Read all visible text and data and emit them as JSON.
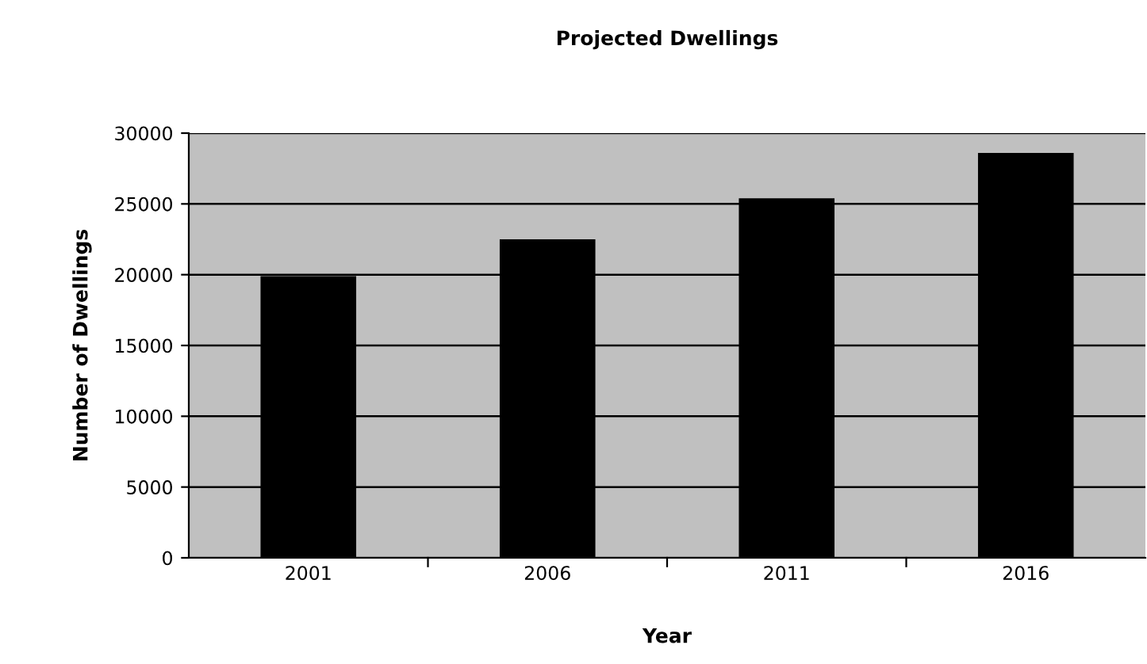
{
  "chart_data": {
    "type": "bar",
    "title": "Projected Dwellings",
    "xlabel": "Year",
    "ylabel": "Number of Dwellings",
    "categories": [
      "2001",
      "2006",
      "2011",
      "2016"
    ],
    "values": [
      19900,
      22500,
      25400,
      28600
    ],
    "color": "#000000",
    "ylim": [
      0,
      30000
    ],
    "yticks": [
      0,
      5000,
      10000,
      15000,
      20000,
      25000,
      30000
    ],
    "grid": "y"
  }
}
